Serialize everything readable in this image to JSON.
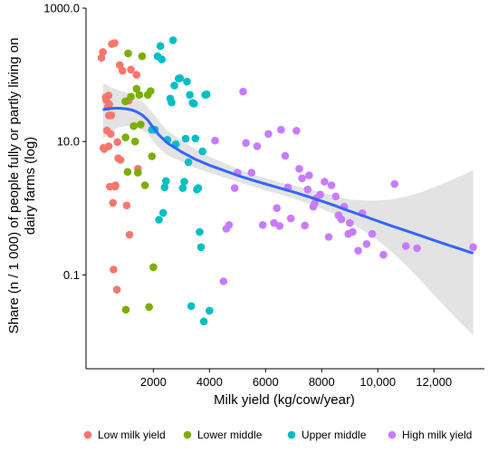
{
  "chart_data": {
    "type": "scatter",
    "xlabel": "Milk yield (kg/cow/year)",
    "ylabel": "Share (n / 1 000) of people fully or partly living on dairy farms (log)",
    "ylabel_lines": [
      "Share (n / 1 000) of people fully or partly living on",
      "dairy farms (log)"
    ],
    "x_scale": "linear",
    "y_scale": "log10",
    "xlim": [
      -400,
      13800
    ],
    "ylim": [
      0.0039,
      1000
    ],
    "x_ticks": [
      2000,
      4000,
      6000,
      8000,
      10000,
      12000
    ],
    "x_tick_labels": [
      "2000",
      "4000",
      "6000",
      "8000",
      "10,000",
      "12,000"
    ],
    "y_ticks": [
      0.1,
      10,
      1000
    ],
    "y_tick_labels": [
      "0.1",
      "10.0",
      "1000.0"
    ],
    "grid": false,
    "legend_position": "bottom",
    "series": [
      {
        "name": "Low milk yield",
        "color": "#F8766D",
        "points": [
          [
            150,
            180
          ],
          [
            200,
            220
          ],
          [
            220,
            8.0
          ],
          [
            250,
            7.7
          ],
          [
            300,
            46
          ],
          [
            320,
            42
          ],
          [
            350,
            14.6
          ],
          [
            380,
            33
          ],
          [
            400,
            49
          ],
          [
            410,
            8.5
          ],
          [
            420,
            24.6
          ],
          [
            430,
            36
          ],
          [
            450,
            2.1
          ],
          [
            480,
            13.0
          ],
          [
            500,
            24.7
          ],
          [
            520,
            290
          ],
          [
            560,
            1.2
          ],
          [
            580,
            0.12
          ],
          [
            620,
            300
          ],
          [
            640,
            2.1
          ],
          [
            650,
            2.2
          ],
          [
            700,
            0.06
          ],
          [
            720,
            9.8
          ],
          [
            750,
            5.6
          ],
          [
            800,
            140
          ],
          [
            830,
            5.3
          ],
          [
            900,
            115
          ],
          [
            1050,
            1.1
          ],
          [
            1120,
            41
          ],
          [
            1150,
            0.4
          ],
          [
            1200,
            120
          ],
          [
            1400,
            100
          ],
          [
            1450,
            3.9
          ]
        ]
      },
      {
        "name": "Lower middle",
        "color": "#7CAE00",
        "points": [
          [
            1000,
            40
          ],
          [
            1010,
            11.5
          ],
          [
            1020,
            0.03
          ],
          [
            1080,
            3.5
          ],
          [
            1100,
            210
          ],
          [
            1200,
            47
          ],
          [
            1300,
            17
          ],
          [
            1350,
            10.0
          ],
          [
            1400,
            62
          ],
          [
            1450,
            3.4
          ],
          [
            1500,
            50
          ],
          [
            1550,
            18
          ],
          [
            1600,
            190
          ],
          [
            1700,
            2.2
          ],
          [
            1800,
            50
          ],
          [
            1850,
            0.033
          ],
          [
            1900,
            57
          ],
          [
            1950,
            6.0
          ],
          [
            2000,
            0.13
          ]
        ]
      },
      {
        "name": "Upper middle",
        "color": "#00BFC4",
        "points": [
          [
            1950,
            15
          ],
          [
            2050,
            15
          ],
          [
            2150,
            190
          ],
          [
            2200,
            0.67
          ],
          [
            2250,
            270
          ],
          [
            2300,
            170
          ],
          [
            2350,
            0.85
          ],
          [
            2400,
            2.05
          ],
          [
            2450,
            2.55
          ],
          [
            2500,
            10.6
          ],
          [
            2600,
            44
          ],
          [
            2650,
            38.5
          ],
          [
            2700,
            330
          ],
          [
            2750,
            69
          ],
          [
            2800,
            9.1
          ],
          [
            2900,
            88
          ],
          [
            2950,
            89
          ],
          [
            3050,
            2.0
          ],
          [
            3100,
            2.5
          ],
          [
            3150,
            11.0
          ],
          [
            3200,
            79
          ],
          [
            3250,
            4.9
          ],
          [
            3300,
            50
          ],
          [
            3350,
            0.034
          ],
          [
            3400,
            38
          ],
          [
            3450,
            37
          ],
          [
            3500,
            11.1
          ],
          [
            3550,
            1.9
          ],
          [
            3600,
            2.0
          ],
          [
            3650,
            0.44
          ],
          [
            3700,
            0.26
          ],
          [
            3750,
            7.1
          ],
          [
            3800,
            0.02
          ],
          [
            3850,
            50
          ],
          [
            3900,
            51
          ],
          [
            4000,
            0.029
          ]
        ]
      },
      {
        "name": "High milk yield",
        "color": "#C77CFF",
        "points": [
          [
            4200,
            10.3
          ],
          [
            4500,
            0.08
          ],
          [
            4600,
            0.49
          ],
          [
            4700,
            0.56
          ],
          [
            4900,
            2.0
          ],
          [
            5000,
            3.4
          ],
          [
            5200,
            56
          ],
          [
            5300,
            9.5
          ],
          [
            5500,
            3.4
          ],
          [
            5700,
            8.5
          ],
          [
            5900,
            0.56
          ],
          [
            6100,
            13
          ],
          [
            6300,
            0.6
          ],
          [
            6400,
            1.0
          ],
          [
            6500,
            0.54
          ],
          [
            6550,
            15
          ],
          [
            6700,
            6.1
          ],
          [
            6800,
            2.05
          ],
          [
            6900,
            0.7
          ],
          [
            7100,
            14.5
          ],
          [
            7200,
            3.9
          ],
          [
            7300,
            2.8
          ],
          [
            7400,
            0.55
          ],
          [
            7500,
            1.9
          ],
          [
            7550,
            3.1
          ],
          [
            7700,
            1.05
          ],
          [
            7750,
            1.18
          ],
          [
            7800,
            1.4
          ],
          [
            7950,
            1.6
          ],
          [
            8100,
            2.5
          ],
          [
            8250,
            0.37
          ],
          [
            8350,
            2.2
          ],
          [
            8500,
            1.5
          ],
          [
            8600,
            0.78
          ],
          [
            8700,
            0.68
          ],
          [
            8800,
            1.05
          ],
          [
            8950,
            0.41
          ],
          [
            9000,
            0.6
          ],
          [
            9100,
            0.44
          ],
          [
            9300,
            0.23
          ],
          [
            9450,
            0.84
          ],
          [
            9600,
            0.29
          ],
          [
            9800,
            0.41
          ],
          [
            10200,
            0.2
          ],
          [
            10600,
            2.3
          ],
          [
            11000,
            0.27
          ],
          [
            11400,
            0.25
          ],
          [
            13400,
            0.26
          ]
        ]
      }
    ],
    "trend": {
      "method": "loess",
      "color": "#3366FF",
      "band_color": "#D9D9D9",
      "points": [
        [
          200,
          30
        ],
        [
          400,
          31
        ],
        [
          600,
          31.5
        ],
        [
          800,
          31.5
        ],
        [
          1000,
          31
        ],
        [
          1200,
          30
        ],
        [
          1400,
          28
        ],
        [
          1600,
          25
        ],
        [
          1800,
          21
        ],
        [
          2000,
          16
        ],
        [
          2200,
          12.5
        ],
        [
          2500,
          9.5
        ],
        [
          3000,
          7.0
        ],
        [
          3500,
          5.4
        ],
        [
          4000,
          4.4
        ],
        [
          4500,
          3.7
        ],
        [
          5000,
          3.1
        ],
        [
          5500,
          2.65
        ],
        [
          6000,
          2.3
        ],
        [
          6500,
          2.0
        ],
        [
          7000,
          1.75
        ],
        [
          7500,
          1.5
        ],
        [
          8000,
          1.28
        ],
        [
          8500,
          1.08
        ],
        [
          9000,
          0.9
        ],
        [
          9500,
          0.76
        ],
        [
          10000,
          0.64
        ],
        [
          10500,
          0.54
        ],
        [
          11000,
          0.46
        ],
        [
          11500,
          0.39
        ],
        [
          12000,
          0.33
        ],
        [
          12500,
          0.28
        ],
        [
          13000,
          0.24
        ],
        [
          13400,
          0.21
        ]
      ],
      "lower": [
        [
          200,
          11
        ],
        [
          400,
          13
        ],
        [
          600,
          15
        ],
        [
          800,
          16.5
        ],
        [
          1000,
          17
        ],
        [
          1200,
          17
        ],
        [
          1400,
          16.5
        ],
        [
          1600,
          15
        ],
        [
          1800,
          13
        ],
        [
          2000,
          10
        ],
        [
          2200,
          8
        ],
        [
          2500,
          6.2
        ],
        [
          3000,
          5.0
        ],
        [
          3500,
          4.0
        ],
        [
          4000,
          3.4
        ],
        [
          4500,
          2.9
        ],
        [
          5000,
          2.5
        ],
        [
          5500,
          2.15
        ],
        [
          6000,
          1.85
        ],
        [
          6500,
          1.62
        ],
        [
          7000,
          1.4
        ],
        [
          7500,
          1.18
        ],
        [
          8000,
          0.98
        ],
        [
          8500,
          0.8
        ],
        [
          9000,
          0.62
        ],
        [
          9500,
          0.46
        ],
        [
          10000,
          0.33
        ],
        [
          10500,
          0.22
        ],
        [
          11000,
          0.14
        ],
        [
          11500,
          0.085
        ],
        [
          12000,
          0.05
        ],
        [
          12500,
          0.03
        ],
        [
          13000,
          0.018
        ],
        [
          13400,
          0.0125
        ]
      ],
      "upper": [
        [
          200,
          75
        ],
        [
          400,
          68
        ],
        [
          600,
          62
        ],
        [
          800,
          58
        ],
        [
          1000,
          55
        ],
        [
          1200,
          51
        ],
        [
          1400,
          46
        ],
        [
          1600,
          40
        ],
        [
          1800,
          33
        ],
        [
          2000,
          26
        ],
        [
          2200,
          20
        ],
        [
          2500,
          14.5
        ],
        [
          3000,
          10.2
        ],
        [
          3500,
          7.6
        ],
        [
          4000,
          5.9
        ],
        [
          4500,
          4.8
        ],
        [
          5000,
          3.9
        ],
        [
          5500,
          3.25
        ],
        [
          6000,
          2.8
        ],
        [
          6500,
          2.45
        ],
        [
          7000,
          2.18
        ],
        [
          7500,
          1.95
        ],
        [
          8000,
          1.7
        ],
        [
          8500,
          1.5
        ],
        [
          9000,
          1.35
        ],
        [
          9500,
          1.3
        ],
        [
          10000,
          1.3
        ],
        [
          10500,
          1.35
        ],
        [
          11000,
          1.5
        ],
        [
          11500,
          1.7
        ],
        [
          12000,
          2.05
        ],
        [
          12500,
          2.5
        ],
        [
          13000,
          3.1
        ],
        [
          13400,
          3.7
        ]
      ]
    }
  }
}
